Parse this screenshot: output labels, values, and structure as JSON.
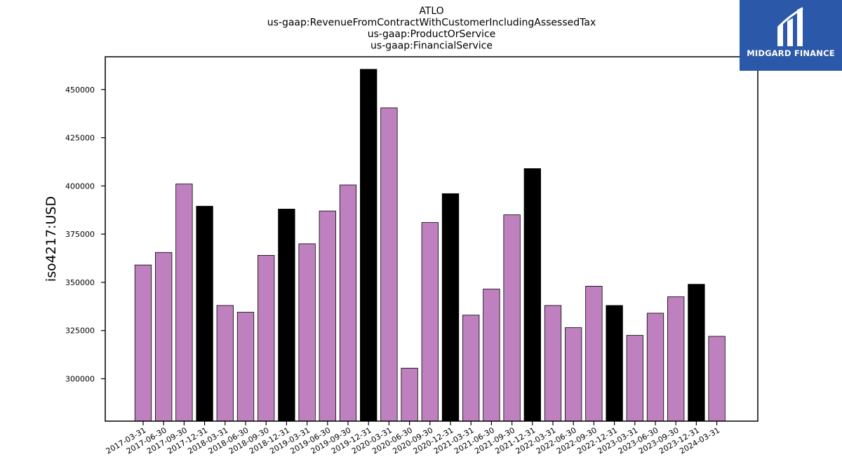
{
  "brand": {
    "name": "MIDGARD FINANCE",
    "logo_icon": "midgard-logo-icon",
    "bg_color": "#2b58a8"
  },
  "chart_data": {
    "type": "bar",
    "title_lines": [
      "ATLO",
      "us-gaap:RevenueFromContractWithCustomerIncludingAssessedTax",
      "us-gaap:ProductOrService",
      "us-gaap:FinancialService"
    ],
    "ylabel": "iso4217:USD",
    "xlabel": "",
    "ylim": [
      278000,
      467000
    ],
    "yticks": [
      300000,
      325000,
      350000,
      375000,
      400000,
      425000,
      450000
    ],
    "colors": {
      "quarter": "#bf80bf",
      "year_end": "#000000",
      "edge": "#000000"
    },
    "categories": [
      "2017-03-31",
      "2017-06-30",
      "2017-09-30",
      "2017-12-31",
      "2018-03-31",
      "2018-06-30",
      "2018-09-30",
      "2018-12-31",
      "2019-03-31",
      "2019-06-30",
      "2019-09-30",
      "2019-12-31",
      "2020-03-31",
      "2020-06-30",
      "2020-09-30",
      "2020-12-31",
      "2021-03-31",
      "2021-06-30",
      "2021-09-30",
      "2021-12-31",
      "2022-03-31",
      "2022-06-30",
      "2022-09-30",
      "2022-12-31",
      "2023-03-31",
      "2023-06-30",
      "2023-09-30",
      "2023-12-31",
      "2024-03-31"
    ],
    "values": [
      359000,
      365500,
      401000,
      389500,
      338000,
      334500,
      364000,
      388000,
      370000,
      387000,
      400500,
      460500,
      440500,
      305500,
      381000,
      396000,
      333000,
      346500,
      385000,
      409000,
      338000,
      326500,
      348000,
      338000,
      322500,
      334000,
      342500,
      349000,
      322000
    ],
    "year_end_flags": [
      false,
      false,
      false,
      true,
      false,
      false,
      false,
      true,
      false,
      false,
      false,
      true,
      false,
      false,
      false,
      true,
      false,
      false,
      false,
      true,
      false,
      false,
      false,
      true,
      false,
      false,
      false,
      true,
      false
    ]
  }
}
